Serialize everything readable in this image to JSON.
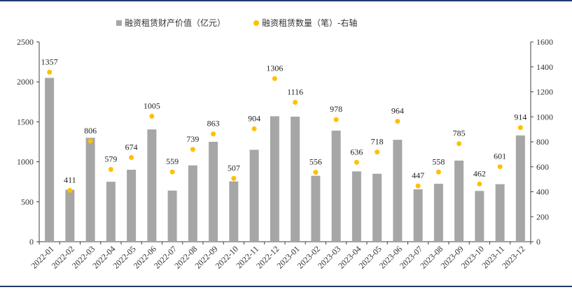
{
  "chart_data": {
    "type": "bar",
    "categories": [
      "2022-01",
      "2022-02",
      "2022-03",
      "2022-04",
      "2022-05",
      "2022-06",
      "2022-07",
      "2022-08",
      "2022-09",
      "2022-10",
      "2022-11",
      "2022-12",
      "2023-01",
      "2023-02",
      "2023-03",
      "2023-04",
      "2023-05",
      "2023-06",
      "2023-07",
      "2023-08",
      "2023-09",
      "2023-10",
      "2023-11",
      "2023-12"
    ],
    "series": [
      {
        "name": "融资租赁财产价值（亿元）",
        "type": "bar",
        "axis": "left",
        "color": "#a6a6a6",
        "values": [
          2050,
          650,
          1300,
          750,
          900,
          1405,
          640,
          955,
          1250,
          755,
          1150,
          1570,
          1565,
          825,
          1390,
          880,
          850,
          1275,
          655,
          725,
          1015,
          635,
          720,
          1330
        ]
      },
      {
        "name": "融资租赁数量（笔）-右轴",
        "type": "scatter",
        "axis": "right",
        "color": "#ffc000",
        "values": [
          1357,
          411,
          806,
          579,
          674,
          1005,
          559,
          739,
          863,
          507,
          904,
          1306,
          1116,
          556,
          978,
          636,
          718,
          964,
          447,
          558,
          785,
          462,
          601,
          914
        ]
      }
    ],
    "left_axis": {
      "ylim": [
        0,
        2500
      ],
      "ticks": [
        "0",
        "500",
        "1000",
        "1500",
        "2000",
        "2500"
      ]
    },
    "right_axis": {
      "ylim": [
        0,
        1600
      ],
      "ticks": [
        "0",
        "200",
        "400",
        "600",
        "800",
        "1000",
        "1200",
        "1400",
        "1600"
      ]
    },
    "legend_position": "top",
    "grid": false,
    "title": "",
    "xlabel": "",
    "ylabel": ""
  }
}
